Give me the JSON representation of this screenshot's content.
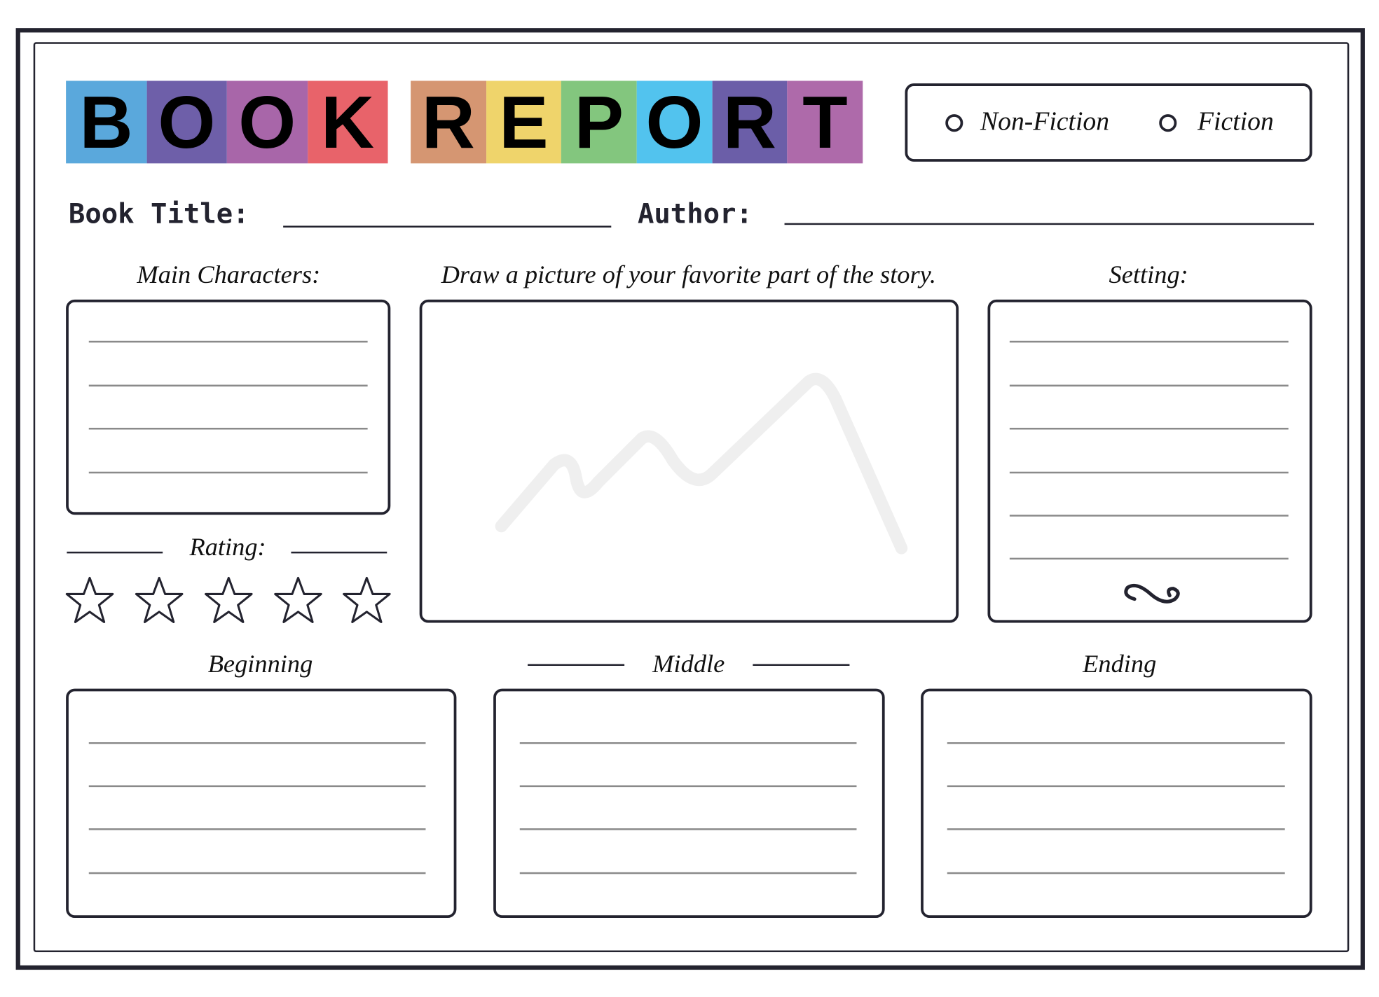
{
  "header": {
    "title_words": [
      {
        "word": "BOOK",
        "letters": [
          {
            "ch": "B",
            "color": "#5aa8dc"
          },
          {
            "ch": "O",
            "color": "#6e5fa9"
          },
          {
            "ch": "O",
            "color": "#a866a9"
          },
          {
            "ch": "K",
            "color": "#e8636a"
          }
        ]
      },
      {
        "word": "REPORT",
        "letters": [
          {
            "ch": "R",
            "color": "#d59672"
          },
          {
            "ch": "E",
            "color": "#efd46b"
          },
          {
            "ch": "P",
            "color": "#83c67e"
          },
          {
            "ch": "O",
            "color": "#52c3ee"
          },
          {
            "ch": "R",
            "color": "#6b5ea8"
          },
          {
            "ch": "T",
            "color": "#ae6aaa"
          }
        ]
      }
    ],
    "genre_options": [
      {
        "label": "Non-Fiction",
        "selected": false
      },
      {
        "label": "Fiction",
        "selected": false
      }
    ]
  },
  "fields": {
    "book_title_label": "Book Title:",
    "book_title_value": "",
    "author_label": "Author:",
    "author_value": ""
  },
  "sections": {
    "main_characters": "Main Characters:",
    "drawing": "Draw a picture of your favorite part of the story.",
    "setting": "Setting:",
    "rating": "Rating:",
    "beginning": "Beginning",
    "middle": "Middle",
    "ending": "Ending"
  },
  "rating": {
    "max_stars": 5,
    "filled": 0
  },
  "colors": {
    "ink": "#23232f"
  }
}
